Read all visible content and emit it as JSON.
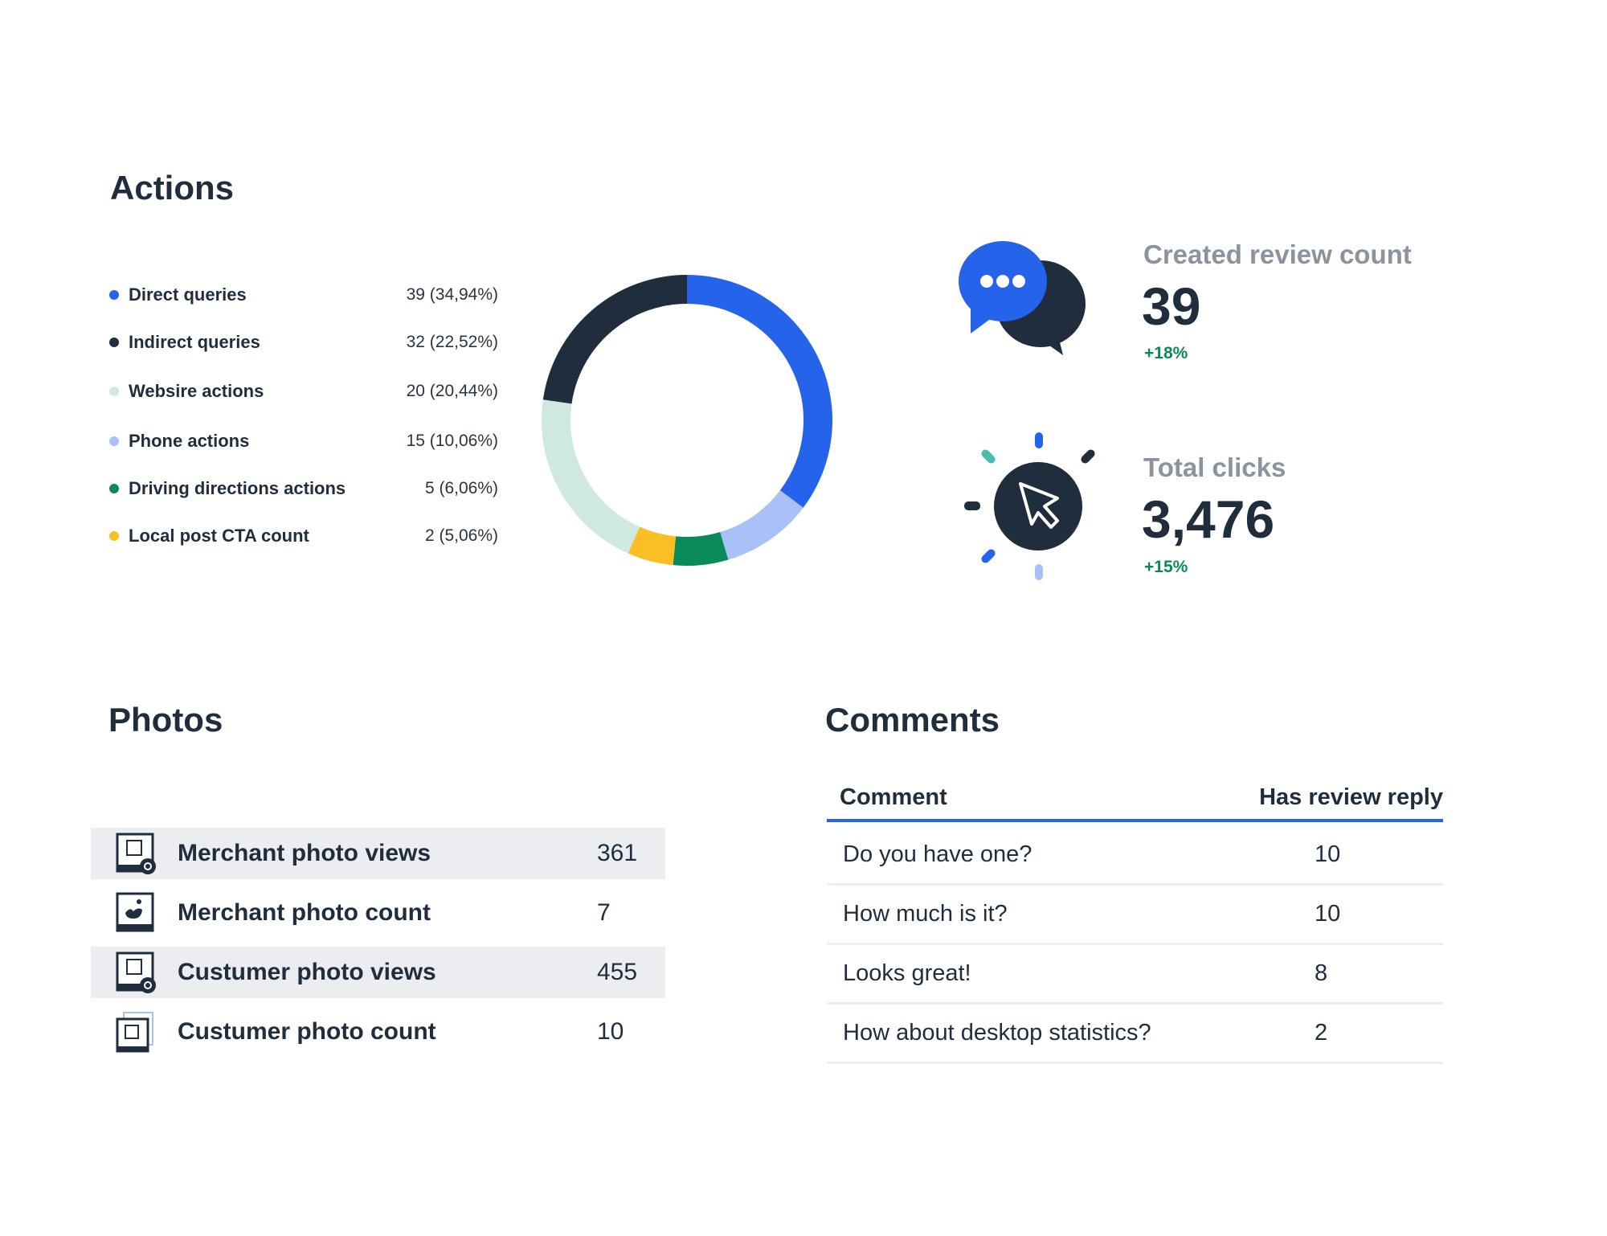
{
  "actions": {
    "title": "Actions",
    "legend": [
      {
        "label": "Direct queries",
        "value": "39 (34,94%)",
        "color": "#2563eb"
      },
      {
        "label": "Indirect queries",
        "value": "32 (22,52%)",
        "color": "#1f2d3d"
      },
      {
        "label": "Websire actions",
        "value": "20 (20,44%)",
        "color": "#cfe9e1"
      },
      {
        "label": "Phone actions",
        "value": "15 (10,06%)",
        "color": "#a9c1f7"
      },
      {
        "label": "Driving directions actions",
        "value": "5 (6,06%)",
        "color": "#0a8a5a"
      },
      {
        "label": "Local post CTA count",
        "value": "2 (5,06%)",
        "color": "#fbbf24"
      }
    ]
  },
  "chart_data": {
    "type": "pie",
    "variant": "donut",
    "categories": [
      "Direct queries",
      "Indirect queries",
      "Websire actions",
      "Phone actions",
      "Driving directions actions",
      "Local post CTA count"
    ],
    "values": [
      39,
      32,
      20,
      15,
      5,
      2
    ],
    "percentages": [
      34.94,
      22.52,
      20.44,
      10.06,
      6.06,
      5.06
    ],
    "colors": [
      "#2563eb",
      "#1f2d3d",
      "#cfe9e1",
      "#a9c1f7",
      "#0a8a5a",
      "#fbbf24"
    ],
    "legend": "left"
  },
  "kpis": [
    {
      "label": "Created review count",
      "value": "39",
      "change": "+18%",
      "icon": "chat-bubbles-icon"
    },
    {
      "label": "Total clicks",
      "value": "3,476",
      "change": "+15%",
      "icon": "cursor-click-icon"
    }
  ],
  "photos": {
    "title": "Photos",
    "rows": [
      {
        "label": "Merchant photo views",
        "value": "361",
        "icon": "store-photo-view-icon"
      },
      {
        "label": "Merchant photo count",
        "value": "7",
        "icon": "image-icon"
      },
      {
        "label": "Custumer photo views",
        "value": "455",
        "icon": "store-photo-view-icon"
      },
      {
        "label": "Custumer photo count",
        "value": "10",
        "icon": "store-photos-icon"
      }
    ]
  },
  "comments": {
    "title": "Comments",
    "columns": [
      "Comment",
      "Has review reply"
    ],
    "rows": [
      {
        "comment": "Do you have one?",
        "reply": "10"
      },
      {
        "comment": "How much is it?",
        "reply": "10"
      },
      {
        "comment": "Looks great!",
        "reply": "8"
      },
      {
        "comment": "How about desktop statistics?",
        "reply": "2"
      }
    ]
  },
  "colors": {
    "accent": "#2563eb",
    "navy": "#1f2d3d",
    "positive": "#0a8a5a",
    "muted": "#8a939e"
  }
}
